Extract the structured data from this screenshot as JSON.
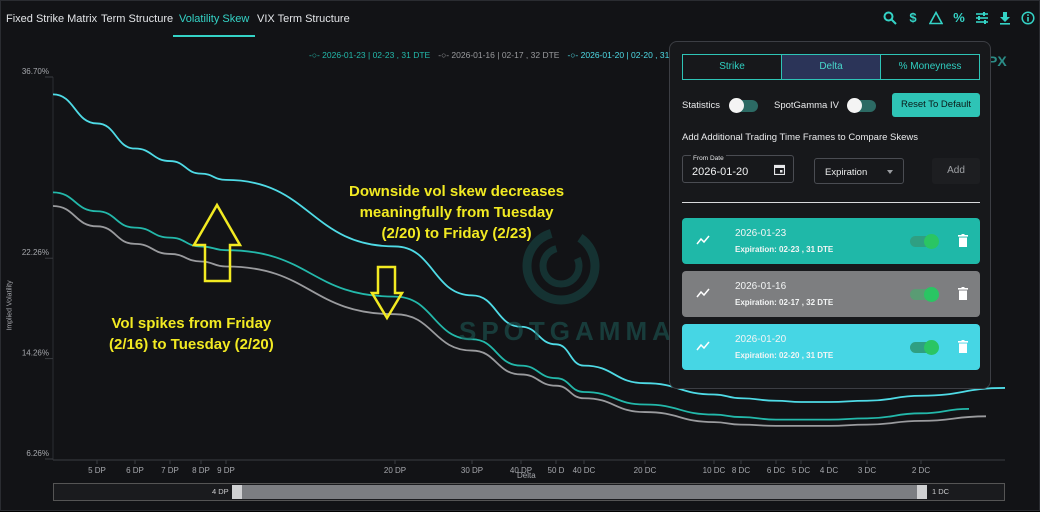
{
  "nav": {
    "tabs": [
      {
        "label": "Fixed Strike Matrix"
      },
      {
        "label": "Term Structure"
      },
      {
        "label": "Volatility Skew"
      },
      {
        "label": "VIX Term Structure"
      }
    ],
    "tool_icons": [
      "search-icon",
      "dollar-icon",
      "triangle-icon",
      "percent-icon",
      "sliders-icon",
      "download-icon",
      "info-icon"
    ]
  },
  "chart_data": {
    "type": "line",
    "xlabel": "Delta",
    "ylabel": "Implied Volatility",
    "y_ticks": [
      "36.70%",
      "22.26%",
      "14.26%",
      "6.26%"
    ],
    "x_ticks": [
      "5 DP",
      "6 DP",
      "7 DP",
      "8 DP",
      "9 DP",
      "20 DP",
      "30 DP",
      "40 DP",
      "50 D",
      "40 DC",
      "20 DC",
      "10 DC",
      "8 DC",
      "6 DC",
      "5 DC",
      "4 DC",
      "3 DC",
      "2 DC"
    ],
    "series": [
      {
        "name": "2026-01-23 | 02-23 , 31 DTE",
        "color": "#23b8aa",
        "values": [
          26.0,
          24.7,
          23.9,
          23.2,
          22.9,
          19.2,
          15.8,
          13.7,
          12.7,
          11.6,
          10.6,
          9.8,
          9.6,
          9.4,
          9.4,
          9.4,
          9.5,
          9.9
        ]
      },
      {
        "name": "2026-01-16 | 02-17 , 32 DTE",
        "color": "#9a9b9e",
        "values": [
          24.8,
          23.4,
          22.6,
          22.0,
          21.6,
          17.8,
          14.9,
          13.0,
          12.1,
          11.1,
          10.0,
          9.2,
          9.0,
          8.9,
          8.9,
          8.9,
          9.0,
          9.3
        ]
      },
      {
        "name": "2026-01-20 | 02-20 , 31 DTE",
        "color": "#4fdbe6",
        "values": [
          33.0,
          31.0,
          30.0,
          29.0,
          28.5,
          23.2,
          19.3,
          16.8,
          15.4,
          13.7,
          12.3,
          11.4,
          11.1,
          10.9,
          10.8,
          10.8,
          10.9,
          11.3
        ]
      }
    ],
    "annotations": [
      {
        "text": "Downside vol skew decreases meaningfully from Tuesday (2/20) to Friday (2/23)",
        "lines": [
          "Downside vol skew decreases",
          "meaningfully from Tuesday",
          "(2/20) to Friday (2/23)"
        ]
      },
      {
        "text": "Vol spikes from Friday (2/16) to Tuesday (2/20)",
        "lines": [
          "Vol spikes from Friday",
          "(2/16) to Tuesday (2/20)"
        ]
      }
    ],
    "watermark": "SPOTGAMMA",
    "range": {
      "start_label": "4 DP",
      "end_label": "1 DC"
    }
  },
  "panel": {
    "modes": [
      {
        "label": "Strike"
      },
      {
        "label": "Delta"
      },
      {
        "label": "% Moneyness"
      }
    ],
    "active_mode": "Delta",
    "statistics_label": "Statistics",
    "spotgamma_iv_label": "SpotGamma IV",
    "reset_label": "Reset To Default",
    "compare_heading": "Add Additional Trading Time Frames to Compare Skews",
    "from_date_caption": "From Date",
    "from_date_value": "2026-01-20",
    "select_value": "Expiration",
    "add_label": "Add",
    "cards": [
      {
        "date": "2026-01-23",
        "expiration": "Expiration: 02-23 , 31 DTE",
        "color": "#1fb8a8"
      },
      {
        "date": "2026-01-16",
        "expiration": "Expiration: 02-17 , 32 DTE",
        "color": "#7d7e80"
      },
      {
        "date": "2026-01-20",
        "expiration": "Expiration: 02-20 , 31 DTE",
        "color": "#46d6e4"
      }
    ]
  },
  "corner_partial": "PX"
}
